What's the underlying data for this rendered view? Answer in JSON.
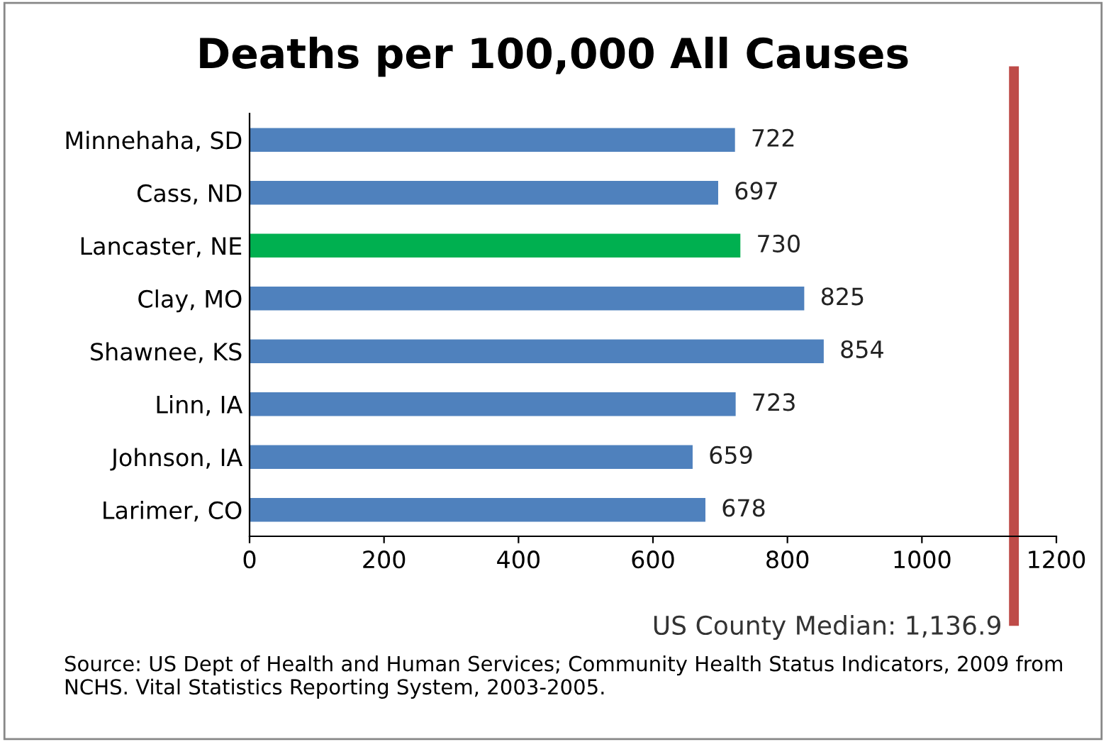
{
  "chart_data": {
    "type": "bar",
    "orientation": "horizontal",
    "title": "Deaths per 100,000 All Causes",
    "categories": [
      "Minnehaha, SD",
      "Cass, ND",
      "Lancaster, NE",
      "Clay, MO",
      "Shawnee, KS",
      "Linn, IA",
      "Johnson, IA",
      "Larimer, CO"
    ],
    "values": [
      722,
      697,
      730,
      825,
      854,
      723,
      659,
      678
    ],
    "colors": [
      "#4f81bd",
      "#4f81bd",
      "#00b050",
      "#4f81bd",
      "#4f81bd",
      "#4f81bd",
      "#4f81bd",
      "#4f81bd"
    ],
    "data_labels": true,
    "xlim": [
      0,
      1200
    ],
    "xticks": [
      0,
      200,
      400,
      600,
      800,
      1000,
      1200
    ],
    "ref_lines": [
      {
        "axis": "x",
        "value": 1136.9,
        "label": "US County Median: 1,136.9",
        "color": "#be4b48"
      }
    ],
    "grid": false,
    "legend": false,
    "annotations": [
      "Source: US Dept of Health and Human Services; Community Health Status Indicators, 2009 from NCHS. Vital Statistics Reporting System, 2003-2005."
    ]
  }
}
